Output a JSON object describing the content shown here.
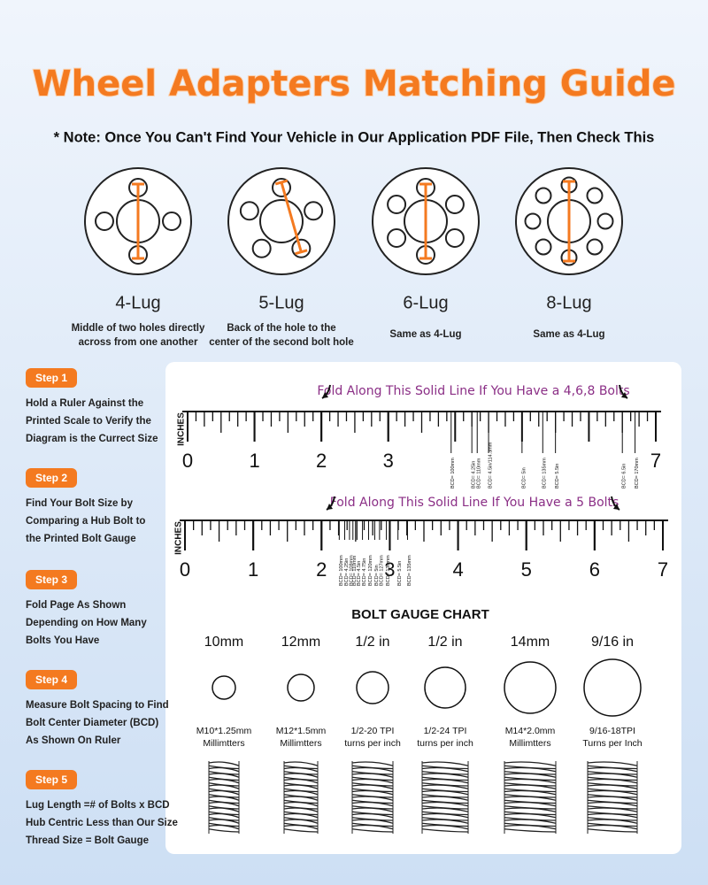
{
  "header": {
    "title": "Wheel Adapters Matching Guide",
    "note": "* Note: Once You Can't Find Your Vehicle in Our Application PDF File, Then Check This"
  },
  "lug_patterns": [
    {
      "name": "4-Lug",
      "description": [
        "Middle of two holes directly",
        "across from one another"
      ]
    },
    {
      "name": "5-Lug",
      "description": [
        "Back of the hole to the",
        "center of the second bolt hole"
      ]
    },
    {
      "name": "6-Lug",
      "description": [
        "Same as 4-Lug"
      ]
    },
    {
      "name": "8-Lug",
      "description": [
        "Same as 4-Lug"
      ]
    }
  ],
  "steps": [
    {
      "label": "Step 1",
      "lines": [
        "Hold a Ruler Against the",
        "Printed Scale to Verify the",
        "Diagram is the Currect Size"
      ]
    },
    {
      "label": "Step 2",
      "lines": [
        "Find Your Bolt Size by",
        "Comparing a Hub Bolt to",
        "the Printed Bolt Gauge"
      ]
    },
    {
      "label": "Step 3",
      "lines": [
        "Fold Page As Shown",
        "Depending on How Many",
        "Bolts You Have"
      ]
    },
    {
      "label": "Step 4",
      "lines": [
        "Measure Bolt Spacing to Find",
        "Bolt Center Diameter (BCD)",
        "As Shown On Ruler"
      ]
    },
    {
      "label": "Step 5",
      "lines": [
        "Lug Length =# of Bolts x BCD",
        "Hub Centric Less than Our Size",
        "Thread Size = Bolt Gauge"
      ]
    }
  ],
  "rulers": [
    {
      "fold_text": "Fold Along This Solid Line If You Have a 4,6,8 Bolts",
      "axis_label": "INCHES",
      "xlim": [
        0,
        7
      ],
      "ticks": [
        0,
        1,
        2,
        3,
        7
      ],
      "markers": [
        {
          "label": "BCD= 100mm",
          "at": 3.94
        },
        {
          "label": "BCD= 4.25in",
          "at": 4.25
        },
        {
          "label": "BCD= 110mm",
          "at": 4.33
        },
        {
          "label": "BCD= 4.5in/114.3mm",
          "at": 4.5
        },
        {
          "label": "BCD= 5in",
          "at": 5
        },
        {
          "label": "BCD= 135mm",
          "at": 5.31
        },
        {
          "label": "BCD= 5.5in",
          "at": 5.5
        },
        {
          "label": "BCD= 6.5in",
          "at": 6.5
        },
        {
          "label": "BCD= 170mm",
          "at": 6.69
        }
      ]
    },
    {
      "fold_text": "Fold Along This Solid Line If You Have a 5 Bolts",
      "axis_label": "INCHES",
      "xlim": [
        0,
        7
      ],
      "ticks": [
        0,
        1,
        2,
        3,
        4,
        5,
        6,
        7
      ],
      "markers": [
        {
          "label": "BCD= 100mm",
          "at": 2.26
        },
        {
          "label": "BCD= 4.25in",
          "at": 2.34
        },
        {
          "label": "BCD= 108mm",
          "at": 2.41
        },
        {
          "label": "BCD= 110mm",
          "at": 2.46
        },
        {
          "label": "BCD= 4.5in",
          "at": 2.52
        },
        {
          "label": "BCD= 4.75in",
          "at": 2.6
        },
        {
          "label": "BCD= 120mm",
          "at": 2.69
        },
        {
          "label": "BCD= 5in",
          "at": 2.78
        },
        {
          "label": "BCD= 127mm",
          "at": 2.85
        },
        {
          "label": "BCD= 130mm",
          "at": 2.95
        },
        {
          "label": "BCD= 5.5in",
          "at": 3.12
        },
        {
          "label": "BCD= 135mm",
          "at": 3.26
        }
      ]
    }
  ],
  "bolt_gauge": {
    "title": "BOLT GAUGE CHART",
    "bolts": [
      {
        "size": "10mm",
        "thread": "M10*1.25mm",
        "unit": "Millimtters"
      },
      {
        "size": "12mm",
        "thread": "M12*1.5mm",
        "unit": "Millimtters"
      },
      {
        "size": "1/2 in",
        "thread": "1/2-20 TPI",
        "unit": "turns per inch"
      },
      {
        "size": "1/2 in",
        "thread": "1/2-24 TPI",
        "unit": "turns per inch"
      },
      {
        "size": "14mm",
        "thread": "M14*2.0mm",
        "unit": "Millimtters"
      },
      {
        "size": "9/16 in",
        "thread": "9/16-18TPI",
        "unit": "Turns per Inch"
      }
    ]
  }
}
